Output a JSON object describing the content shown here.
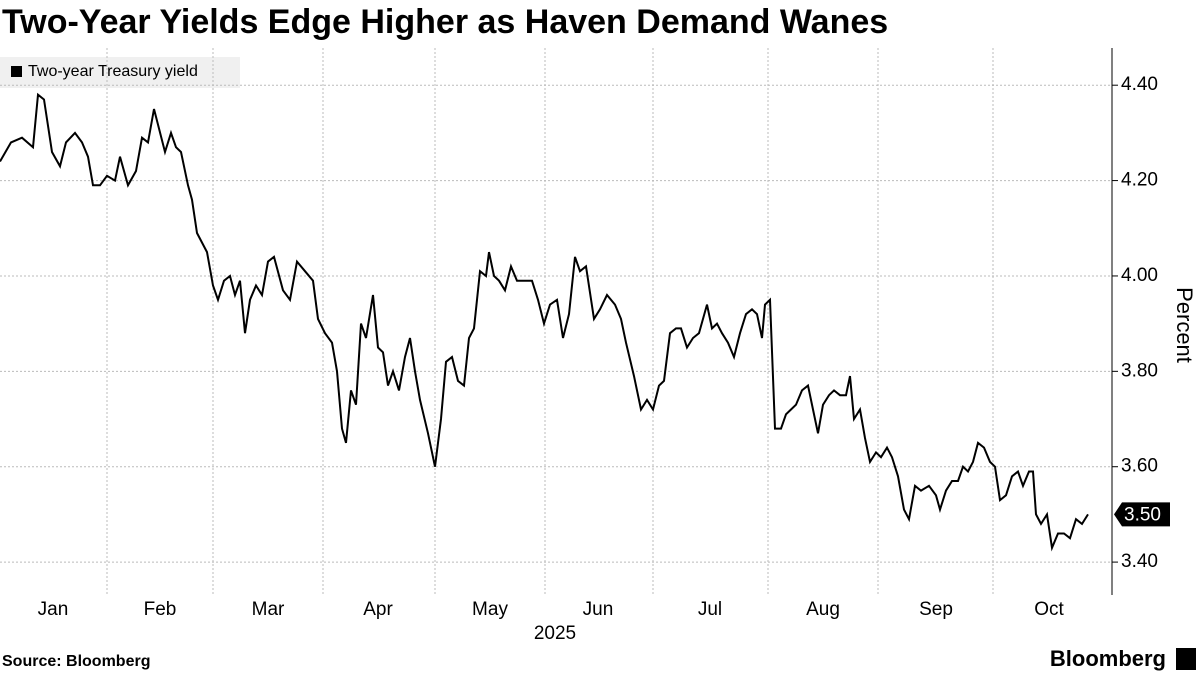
{
  "chart_data": {
    "type": "line",
    "title": "Two-Year Yields Edge Higher as Haven Demand Wanes",
    "y_axis_label": "Percent",
    "x_axis_label": "2025",
    "source": "Source: Bloomberg",
    "brand": "Bloomberg",
    "last_label": "3.50",
    "series": [
      {
        "name": "Two-year Treasury yield",
        "color": "#000000",
        "x": [
          0,
          11,
          22,
          33,
          38,
          44,
          52,
          60,
          66,
          75,
          82,
          88,
          93,
          100,
          107,
          115,
          120,
          128,
          136,
          142,
          148,
          154,
          165,
          171,
          176,
          181,
          188,
          192,
          197,
          207,
          213,
          218,
          224,
          230,
          235,
          240,
          245,
          250,
          256,
          262,
          268,
          274,
          283,
          290,
          297,
          305,
          313,
          318,
          325,
          332,
          337,
          342,
          346,
          351,
          356,
          361,
          366,
          373,
          378,
          383,
          388,
          393,
          399,
          405,
          410,
          415,
          420,
          428,
          435,
          441,
          446,
          452,
          458,
          464,
          469,
          474,
          480,
          486,
          489,
          494,
          499,
          505,
          511,
          517,
          524,
          532,
          538,
          544,
          550,
          557,
          563,
          569,
          575,
          580,
          586,
          594,
          600,
          607,
          615,
          621,
          626,
          634,
          641,
          647,
          653,
          659,
          664,
          670,
          676,
          681,
          687,
          693,
          699,
          707,
          712,
          717,
          722,
          728,
          734,
          740,
          746,
          752,
          757,
          762,
          765,
          770,
          775,
          781,
          786,
          791,
          796,
          802,
          808,
          813,
          818,
          823,
          829,
          834,
          840,
          846,
          850,
          854,
          860,
          865,
          870,
          876,
          881,
          887,
          892,
          898,
          904,
          909,
          915,
          921,
          929,
          936,
          940,
          946,
          952,
          958,
          963,
          968,
          973,
          978,
          984,
          990,
          995,
          1000,
          1006,
          1012,
          1018,
          1023,
          1029,
          1033,
          1036,
          1041,
          1047,
          1052,
          1058,
          1064,
          1070,
          1076,
          1082,
          1088
        ],
        "values": [
          4.24,
          4.28,
          4.29,
          4.27,
          4.38,
          4.37,
          4.26,
          4.23,
          4.28,
          4.3,
          4.28,
          4.25,
          4.19,
          4.19,
          4.21,
          4.2,
          4.25,
          4.19,
          4.22,
          4.29,
          4.28,
          4.35,
          4.26,
          4.3,
          4.27,
          4.26,
          4.19,
          4.16,
          4.09,
          4.05,
          3.98,
          3.95,
          3.99,
          4.0,
          3.96,
          3.99,
          3.88,
          3.95,
          3.98,
          3.96,
          4.03,
          4.04,
          3.97,
          3.95,
          4.03,
          4.01,
          3.99,
          3.91,
          3.88,
          3.86,
          3.8,
          3.68,
          3.65,
          3.76,
          3.73,
          3.9,
          3.87,
          3.96,
          3.85,
          3.84,
          3.77,
          3.8,
          3.76,
          3.83,
          3.87,
          3.8,
          3.74,
          3.67,
          3.6,
          3.7,
          3.82,
          3.83,
          3.78,
          3.77,
          3.87,
          3.89,
          4.01,
          4.0,
          4.05,
          4.0,
          3.99,
          3.97,
          4.02,
          3.99,
          3.99,
          3.99,
          3.95,
          3.9,
          3.94,
          3.95,
          3.87,
          3.92,
          4.04,
          4.01,
          4.02,
          3.91,
          3.93,
          3.96,
          3.94,
          3.91,
          3.86,
          3.79,
          3.72,
          3.74,
          3.72,
          3.77,
          3.78,
          3.88,
          3.89,
          3.89,
          3.85,
          3.87,
          3.88,
          3.94,
          3.89,
          3.9,
          3.88,
          3.86,
          3.83,
          3.88,
          3.92,
          3.93,
          3.92,
          3.87,
          3.94,
          3.95,
          3.68,
          3.68,
          3.71,
          3.72,
          3.73,
          3.76,
          3.77,
          3.72,
          3.67,
          3.73,
          3.75,
          3.76,
          3.75,
          3.75,
          3.79,
          3.7,
          3.72,
          3.66,
          3.61,
          3.63,
          3.62,
          3.64,
          3.62,
          3.58,
          3.51,
          3.49,
          3.56,
          3.55,
          3.56,
          3.54,
          3.51,
          3.55,
          3.57,
          3.57,
          3.6,
          3.59,
          3.61,
          3.65,
          3.64,
          3.61,
          3.6,
          3.53,
          3.54,
          3.58,
          3.59,
          3.56,
          3.59,
          3.59,
          3.5,
          3.48,
          3.5,
          3.43,
          3.46,
          3.46,
          3.45,
          3.49,
          3.48,
          3.5
        ]
      }
    ],
    "xlim": [
      0,
      1112
    ],
    "xticks": [
      {
        "value": 53,
        "label": "Jan"
      },
      {
        "value": 160,
        "label": "Feb"
      },
      {
        "value": 268,
        "label": "Mar"
      },
      {
        "value": 378,
        "label": "Apr"
      },
      {
        "value": 490,
        "label": "May"
      },
      {
        "value": 598,
        "label": "Jun"
      },
      {
        "value": 710,
        "label": "Jul"
      },
      {
        "value": 823,
        "label": "Aug"
      },
      {
        "value": 936,
        "label": "Sep"
      },
      {
        "value": 1049,
        "label": "Oct"
      }
    ],
    "xgrid": [
      107,
      213,
      323,
      435,
      545,
      653,
      768,
      878,
      993
    ],
    "ylim": [
      3.331,
      4.478
    ],
    "yticks": [
      {
        "value": 3.4,
        "label": "3.40"
      },
      {
        "value": 3.6,
        "label": "3.60"
      },
      {
        "value": 3.8,
        "label": "3.80"
      },
      {
        "value": 4.0,
        "label": "4.00"
      },
      {
        "value": 4.2,
        "label": "4.20"
      },
      {
        "value": 4.4,
        "label": "4.40"
      }
    ],
    "grid": true
  }
}
